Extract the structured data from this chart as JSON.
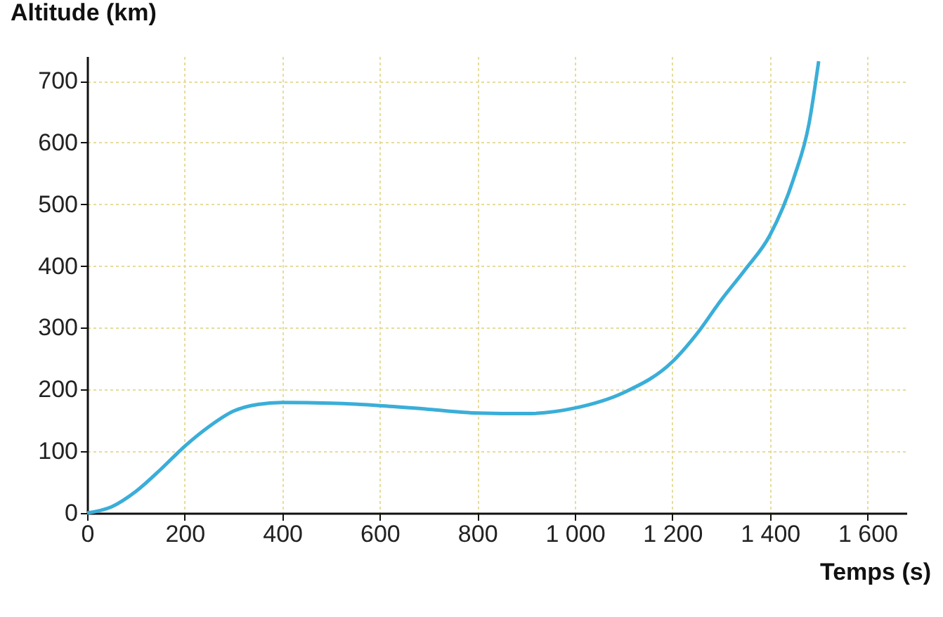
{
  "chart_data": {
    "type": "line",
    "xlabel": "Temps (s)",
    "ylabel": "Altitude (km)",
    "x": [
      0,
      50,
      100,
      150,
      200,
      250,
      300,
      350,
      400,
      500,
      600,
      700,
      800,
      900,
      1000,
      1100,
      1200,
      1250,
      1300,
      1350,
      1400,
      1450,
      1480,
      1500
    ],
    "series": [
      {
        "color": "#3aaed8",
        "values": [
          0,
          10,
          35,
          70,
          108,
          140,
          165,
          176,
          179,
          178,
          174,
          168,
          162,
          161,
          170,
          195,
          245,
          290,
          345,
          395,
          450,
          545,
          630,
          732
        ]
      }
    ],
    "xlim": [
      0,
      1680
    ],
    "ylim": [
      0,
      740
    ],
    "xticks": [
      0,
      200,
      400,
      600,
      800,
      {
        "value": 1000,
        "label": "1 000"
      },
      {
        "value": 1200,
        "label": "1 200"
      },
      {
        "value": 1400,
        "label": "1 400"
      },
      {
        "value": 1600,
        "label": "1 600"
      }
    ],
    "yticks": [
      0,
      100,
      200,
      300,
      400,
      500,
      600,
      700
    ],
    "grid": true,
    "marker": "none",
    "line_style": "solid"
  }
}
